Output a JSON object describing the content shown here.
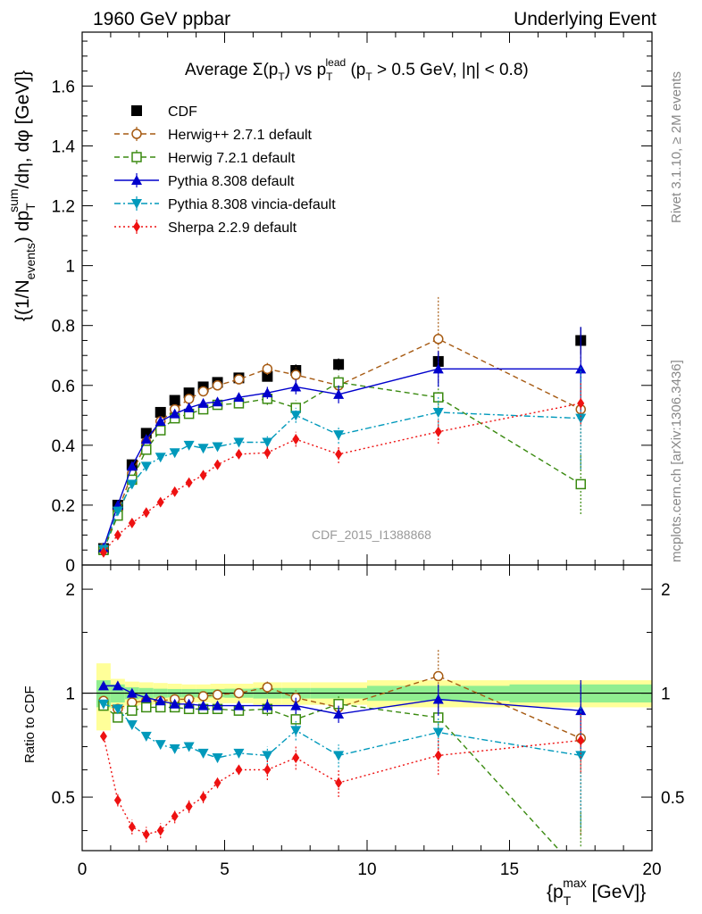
{
  "header": {
    "left": "1960 GeV ppbar",
    "right": "Underlying Event"
  },
  "side_labels": {
    "rivet": "Rivet 3.1.10, ≥ 2M events",
    "mcplots": "mcplots.cern.ch [arXiv:1306.3436]"
  },
  "watermark": "CDF_2015_I1388868",
  "chart_data": [
    {
      "type": "line",
      "title": "Average Σ(p_T) vs p_T^lead (p_T > 0.5 GeV, |η| < 0.8)",
      "title_parts": {
        "avg": "Average ",
        "sigma": "Σ(p",
        "sub_t": "T",
        "vs": ") vs p",
        "lead": "lead",
        "cut": " (p",
        "rest": " > 0.5 GeV, |η| < 0.8)"
      },
      "ylabel": "{(1/N_events) dp_T^sum/dη, dφ [GeV]}",
      "ylabel_parts": {
        "open": "{(1/N",
        "events": "events",
        "dp": ") dp",
        "sum": "sum",
        "rest": "/dη, dφ [GeV]}"
      },
      "xlabel": "{p_T^max [GeV]}",
      "xlabel_parts": {
        "open": "{p",
        "max": "max",
        "close": " [GeV]}"
      },
      "xlim": [
        0,
        20
      ],
      "ylim": [
        0,
        1.78
      ],
      "yticks": [
        0,
        0.2,
        0.4,
        0.6,
        0.8,
        1,
        1.2,
        1.4,
        1.6
      ],
      "ytick_labels": [
        "0",
        "0.2",
        "0.4",
        "0.6",
        "0.8",
        "1",
        "1.2",
        "1.4",
        "1.6"
      ],
      "legend_position": "top-left",
      "series": [
        {
          "name": "CDF",
          "color": "#000000",
          "marker": "square-filled",
          "line": "none",
          "points": [
            [
              0.75,
              0.055
            ],
            [
              1.25,
              0.2
            ],
            [
              1.75,
              0.335
            ],
            [
              2.25,
              0.44
            ],
            [
              2.75,
              0.51
            ],
            [
              3.25,
              0.55
            ],
            [
              3.75,
              0.575
            ],
            [
              4.25,
              0.595
            ],
            [
              4.75,
              0.61
            ],
            [
              5.5,
              0.625
            ],
            [
              6.5,
              0.63
            ],
            [
              7.5,
              0.65
            ],
            [
              9,
              0.67
            ],
            [
              12.5,
              0.68
            ],
            [
              17.5,
              0.75
            ]
          ],
          "err": [
            0.005,
            0.008,
            0.01,
            0.01,
            0.01,
            0.01,
            0.01,
            0.01,
            0.01,
            0.012,
            0.015,
            0.02,
            0.02,
            0.03,
            0.045
          ]
        },
        {
          "name": "Herwig++ 2.7.1 default",
          "color": "#a65a12",
          "marker": "circle-open",
          "line": "dashed",
          "points": [
            [
              0.75,
              0.055
            ],
            [
              1.25,
              0.18
            ],
            [
              1.75,
              0.305
            ],
            [
              2.25,
              0.41
            ],
            [
              2.75,
              0.48
            ],
            [
              3.25,
              0.52
            ],
            [
              3.75,
              0.555
            ],
            [
              4.25,
              0.58
            ],
            [
              4.75,
              0.6
            ],
            [
              5.5,
              0.62
            ],
            [
              6.5,
              0.655
            ],
            [
              7.5,
              0.635
            ],
            [
              9,
              0.6
            ],
            [
              12.5,
              0.755
            ],
            [
              17.5,
              0.52
            ]
          ],
          "err": [
            0.004,
            0.006,
            0.008,
            0.008,
            0.008,
            0.008,
            0.008,
            0.01,
            0.01,
            0.012,
            0.02,
            0.025,
            0.03,
            0.14,
            0.2
          ]
        },
        {
          "name": "Herwig 7.2.1 default",
          "color": "#3a8a10",
          "marker": "square-open",
          "line": "dashed",
          "points": [
            [
              0.75,
              0.05
            ],
            [
              1.25,
              0.165
            ],
            [
              1.75,
              0.285
            ],
            [
              2.25,
              0.385
            ],
            [
              2.75,
              0.45
            ],
            [
              3.25,
              0.49
            ],
            [
              3.75,
              0.505
            ],
            [
              4.25,
              0.52
            ],
            [
              4.75,
              0.535
            ],
            [
              5.5,
              0.54
            ],
            [
              6.5,
              0.555
            ],
            [
              7.5,
              0.525
            ],
            [
              9,
              0.61
            ],
            [
              12.5,
              0.56
            ],
            [
              17.5,
              0.27
            ]
          ],
          "err": [
            0.004,
            0.006,
            0.008,
            0.008,
            0.008,
            0.008,
            0.008,
            0.01,
            0.01,
            0.012,
            0.02,
            0.025,
            0.03,
            0.06,
            0.1
          ]
        },
        {
          "name": "Pythia 8.308 default",
          "color": "#0000cc",
          "marker": "triangle-up-filled",
          "line": "solid",
          "points": [
            [
              0.75,
              0.058
            ],
            [
              1.25,
              0.2
            ],
            [
              1.75,
              0.33
            ],
            [
              2.25,
              0.42
            ],
            [
              2.75,
              0.48
            ],
            [
              3.25,
              0.505
            ],
            [
              3.75,
              0.525
            ],
            [
              4.25,
              0.54
            ],
            [
              4.75,
              0.545
            ],
            [
              5.5,
              0.56
            ],
            [
              6.5,
              0.575
            ],
            [
              7.5,
              0.595
            ],
            [
              9,
              0.57
            ],
            [
              12.5,
              0.655
            ],
            [
              17.5,
              0.655
            ]
          ],
          "err": [
            0.004,
            0.006,
            0.008,
            0.008,
            0.008,
            0.008,
            0.008,
            0.01,
            0.01,
            0.012,
            0.02,
            0.025,
            0.03,
            0.06,
            0.14
          ]
        },
        {
          "name": "Pythia 8.308 vincia-default",
          "color": "#0099bb",
          "marker": "triangle-down-filled",
          "line": "dashdot",
          "points": [
            [
              0.75,
              0.052
            ],
            [
              1.25,
              0.18
            ],
            [
              1.75,
              0.27
            ],
            [
              2.25,
              0.33
            ],
            [
              2.75,
              0.36
            ],
            [
              3.25,
              0.375
            ],
            [
              3.75,
              0.4
            ],
            [
              4.25,
              0.39
            ],
            [
              4.75,
              0.395
            ],
            [
              5.5,
              0.41
            ],
            [
              6.5,
              0.41
            ],
            [
              7.5,
              0.5
            ],
            [
              9,
              0.435
            ],
            [
              12.5,
              0.51
            ],
            [
              17.5,
              0.49
            ]
          ],
          "err": [
            0.004,
            0.006,
            0.008,
            0.008,
            0.008,
            0.008,
            0.008,
            0.01,
            0.01,
            0.012,
            0.02,
            0.025,
            0.03,
            0.05,
            0.17
          ]
        },
        {
          "name": "Sherpa 2.2.9 default",
          "color": "#ee1111",
          "marker": "diamond-filled",
          "line": "dotted",
          "points": [
            [
              0.75,
              0.042
            ],
            [
              1.25,
              0.1
            ],
            [
              1.75,
              0.14
            ],
            [
              2.25,
              0.175
            ],
            [
              2.75,
              0.21
            ],
            [
              3.25,
              0.245
            ],
            [
              3.75,
              0.275
            ],
            [
              4.25,
              0.3
            ],
            [
              4.75,
              0.335
            ],
            [
              5.5,
              0.37
            ],
            [
              6.5,
              0.375
            ],
            [
              7.5,
              0.42
            ],
            [
              9,
              0.37
            ],
            [
              12.5,
              0.445
            ],
            [
              17.5,
              0.54
            ]
          ],
          "err": [
            0.004,
            0.006,
            0.008,
            0.008,
            0.008,
            0.008,
            0.008,
            0.01,
            0.01,
            0.012,
            0.02,
            0.025,
            0.03,
            0.04,
            0.07
          ]
        }
      ]
    },
    {
      "type": "line",
      "ylabel": "Ratio to CDF",
      "xlim": [
        0,
        20
      ],
      "ylim": [
        0.35,
        2.35
      ],
      "yscale": "log",
      "yticks": [
        0.5,
        1,
        2
      ],
      "ytick_labels": [
        "0.5",
        "1",
        "2"
      ],
      "xticks": [
        0,
        5,
        10,
        15,
        20
      ],
      "xtick_labels": [
        "0",
        "5",
        "10",
        "15",
        "20"
      ],
      "reference_line": 1,
      "uncertainty_bands": {
        "bins": [
          [
            0.5,
            1
          ],
          [
            1,
            1.5
          ],
          [
            1.5,
            2
          ],
          [
            2,
            2.5
          ],
          [
            2.5,
            3
          ],
          [
            3,
            3.5
          ],
          [
            3.5,
            4
          ],
          [
            4,
            4.5
          ],
          [
            4.5,
            5
          ],
          [
            5,
            6
          ],
          [
            6,
            7
          ],
          [
            7,
            8
          ],
          [
            8,
            10
          ],
          [
            10,
            15
          ],
          [
            15,
            20
          ]
        ],
        "stat": [
          0.09,
          0.06,
          0.04,
          0.035,
          0.03,
          0.028,
          0.028,
          0.028,
          0.028,
          0.03,
          0.035,
          0.035,
          0.035,
          0.05,
          0.06
        ],
        "total": [
          0.22,
          0.1,
          0.08,
          0.075,
          0.07,
          0.065,
          0.06,
          0.06,
          0.065,
          0.065,
          0.075,
          0.075,
          0.075,
          0.09,
          0.09
        ],
        "stat_color": "#90ee90",
        "total_color": "#ffff99"
      },
      "series": [
        {
          "name": "Herwig++ 2.7.1 default",
          "points": [
            [
              0.75,
              0.95
            ],
            [
              1.25,
              0.9
            ],
            [
              1.75,
              0.94
            ],
            [
              2.25,
              0.95
            ],
            [
              2.75,
              0.95
            ],
            [
              3.25,
              0.96
            ],
            [
              3.75,
              0.96
            ],
            [
              4.25,
              0.98
            ],
            [
              4.75,
              0.99
            ],
            [
              5.5,
              1.0
            ],
            [
              6.5,
              1.04
            ],
            [
              7.5,
              0.97
            ],
            [
              9,
              0.91
            ],
            [
              12.5,
              1.12
            ],
            [
              17.5,
              0.74
            ]
          ],
          "err": [
            0.02,
            0.02,
            0.02,
            0.02,
            0.02,
            0.02,
            0.02,
            0.02,
            0.02,
            0.02,
            0.04,
            0.05,
            0.05,
            0.22,
            0.35
          ]
        },
        {
          "name": "Herwig 7.2.1 default",
          "points": [
            [
              0.75,
              0.92
            ],
            [
              1.25,
              0.85
            ],
            [
              1.75,
              0.89
            ],
            [
              2.25,
              0.91
            ],
            [
              2.75,
              0.91
            ],
            [
              3.25,
              0.91
            ],
            [
              3.75,
              0.9
            ],
            [
              4.25,
              0.9
            ],
            [
              4.75,
              0.9
            ],
            [
              5.5,
              0.89
            ],
            [
              6.5,
              0.9
            ],
            [
              7.5,
              0.84
            ],
            [
              9,
              0.93
            ],
            [
              12.5,
              0.85
            ],
            [
              17.5,
              0.3
            ]
          ],
          "err": [
            0.02,
            0.02,
            0.02,
            0.02,
            0.02,
            0.02,
            0.02,
            0.02,
            0.02,
            0.02,
            0.04,
            0.05,
            0.05,
            0.1,
            0.15
          ]
        },
        {
          "name": "Pythia 8.308 default",
          "points": [
            [
              0.75,
              1.05
            ],
            [
              1.25,
              1.05
            ],
            [
              1.75,
              1.0
            ],
            [
              2.25,
              0.97
            ],
            [
              2.75,
              0.95
            ],
            [
              3.25,
              0.93
            ],
            [
              3.75,
              0.93
            ],
            [
              4.25,
              0.92
            ],
            [
              4.75,
              0.92
            ],
            [
              5.5,
              0.92
            ],
            [
              6.5,
              0.92
            ],
            [
              7.5,
              0.92
            ],
            [
              9,
              0.87
            ],
            [
              12.5,
              0.96
            ],
            [
              17.5,
              0.89
            ]
          ],
          "err": [
            0.02,
            0.02,
            0.02,
            0.02,
            0.02,
            0.02,
            0.02,
            0.02,
            0.02,
            0.02,
            0.04,
            0.05,
            0.05,
            0.1,
            0.2
          ]
        },
        {
          "name": "Pythia 8.308 vincia-default",
          "points": [
            [
              0.75,
              0.93
            ],
            [
              1.25,
              0.9
            ],
            [
              1.75,
              0.81
            ],
            [
              2.25,
              0.75
            ],
            [
              2.75,
              0.71
            ],
            [
              3.25,
              0.69
            ],
            [
              3.75,
              0.7
            ],
            [
              4.25,
              0.67
            ],
            [
              4.75,
              0.65
            ],
            [
              5.5,
              0.67
            ],
            [
              6.5,
              0.66
            ],
            [
              7.5,
              0.78
            ],
            [
              9,
              0.66
            ],
            [
              12.5,
              0.77
            ],
            [
              17.5,
              0.66
            ]
          ],
          "err": [
            0.02,
            0.02,
            0.02,
            0.02,
            0.02,
            0.02,
            0.02,
            0.02,
            0.02,
            0.02,
            0.04,
            0.05,
            0.05,
            0.08,
            0.25
          ]
        },
        {
          "name": "Sherpa 2.2.9 default",
          "points": [
            [
              0.75,
              0.75
            ],
            [
              1.25,
              0.49
            ],
            [
              1.75,
              0.41
            ],
            [
              2.25,
              0.39
            ],
            [
              2.75,
              0.4
            ],
            [
              3.25,
              0.44
            ],
            [
              3.75,
              0.47
            ],
            [
              4.25,
              0.5
            ],
            [
              4.75,
              0.55
            ],
            [
              5.5,
              0.6
            ],
            [
              6.5,
              0.6
            ],
            [
              7.5,
              0.65
            ],
            [
              9,
              0.55
            ],
            [
              12.5,
              0.66
            ],
            [
              17.5,
              0.73
            ]
          ],
          "err": [
            0.02,
            0.02,
            0.02,
            0.02,
            0.02,
            0.02,
            0.02,
            0.02,
            0.02,
            0.02,
            0.04,
            0.05,
            0.05,
            0.08,
            0.14
          ]
        }
      ]
    }
  ]
}
